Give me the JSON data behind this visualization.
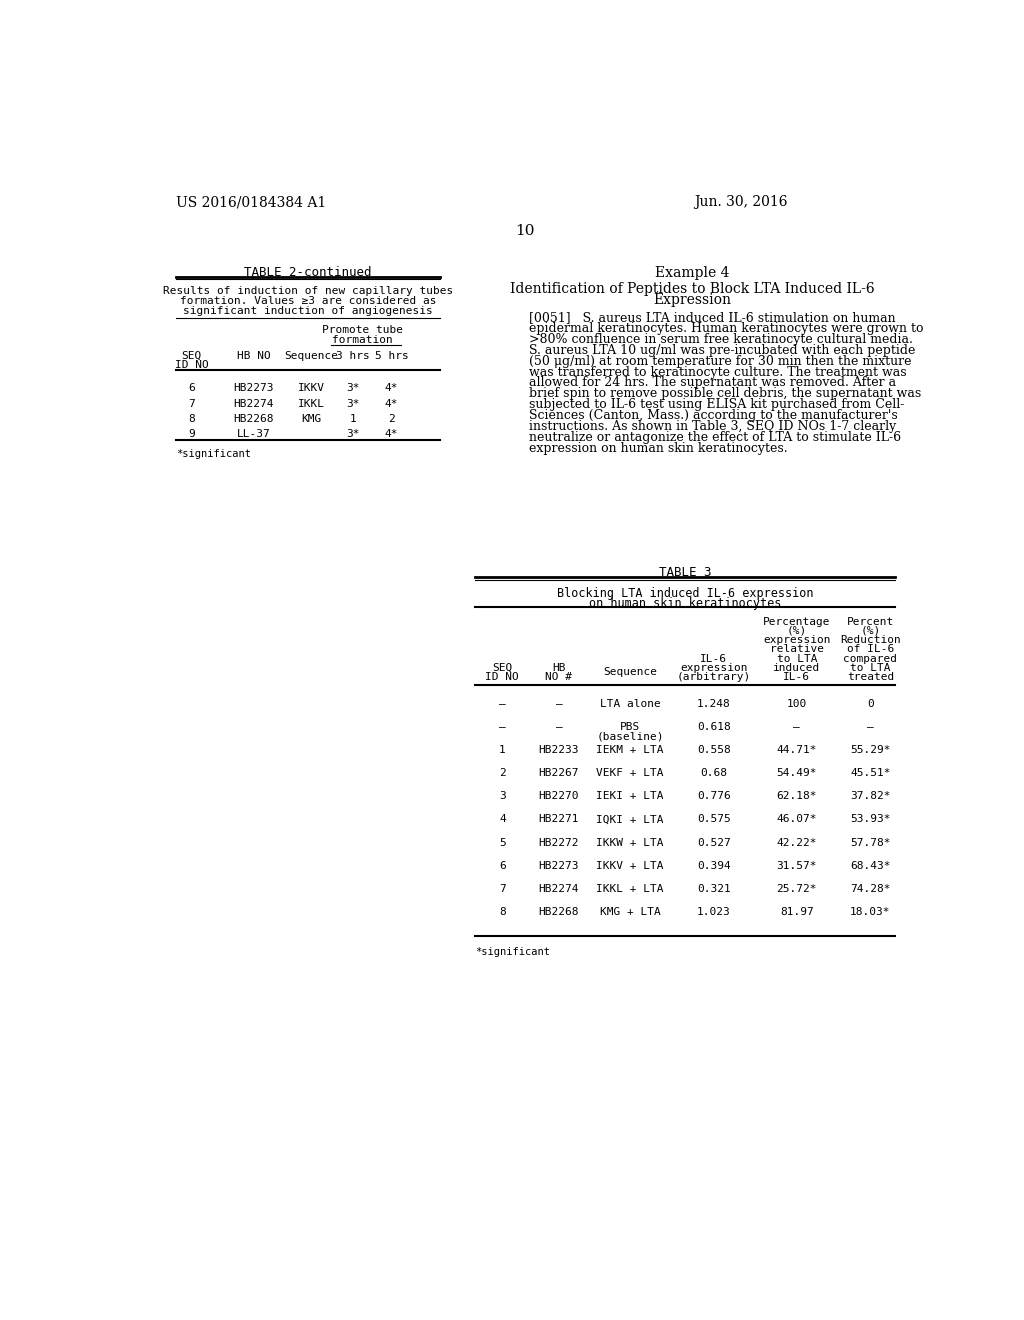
{
  "bg_color": "#ffffff",
  "page_number": "10",
  "header_left": "US 2016/0184384 A1",
  "header_right": "Jun. 30, 2016",
  "table2_title": "TABLE 2-continued",
  "table2_subtitle_lines": [
    "Results of induction of new capillary tubes",
    "formation. Values ≥3 are considered as",
    "significant induction of angiogenesis"
  ],
  "table2_rows": [
    [
      "6",
      "HB2273",
      "IKKV",
      "3*",
      "4*"
    ],
    [
      "7",
      "HB2274",
      "IKKL",
      "3*",
      "4*"
    ],
    [
      "8",
      "HB2268",
      "KMG",
      "1",
      "2"
    ],
    [
      "9",
      "LL-37",
      "",
      "3*",
      "4*"
    ]
  ],
  "table2_footnote": "*significant",
  "example4_title": "Example 4",
  "example4_subtitle_lines": [
    "Identification of Peptides to Block LTA Induced IL-6",
    "Expression"
  ],
  "example4_para_lines": [
    "[0051]   S. aureus LTA induced IL-6 stimulation on human",
    "epidermal keratinocytes. Human keratinocytes were grown to",
    ">80% confluence in serum free keratinocyte cultural media.",
    "S. aureus LTA 10 ug/ml was pre-incubated with each peptide",
    "(50 μg/ml) at room temperature for 30 min then the mixture",
    "was transferred to keratinocyte culture. The treatment was",
    "allowed for 24 hrs. The supernatant was removed. After a",
    "brief spin to remove possible cell debris, the supernatant was",
    "subjected to IL-6 test using ELISA kit purchased from Cell-",
    "Sciences (Canton, Mass.) according to the manufacturer's",
    "instructions. As shown in Table 3, SEQ ID NOs 1-7 clearly",
    "neutralize or antagonize the effect of LTA to stimulate IL-6",
    "expression on human skin keratinocytes."
  ],
  "table3_title": "TABLE 3",
  "table3_subtitle_lines": [
    "Blocking LTA induced IL-6 expression",
    "on human skin keratinocytes"
  ],
  "table3_rows": [
    [
      "–",
      "–",
      "LTA alone",
      "1.248",
      "100",
      "0"
    ],
    [
      "–",
      "–",
      "PBS",
      "0.618",
      "–",
      "–"
    ],
    [
      "1",
      "HB2233",
      "IEKM + LTA",
      "0.558",
      "44.71*",
      "55.29*"
    ],
    [
      "2",
      "HB2267",
      "VEKF + LTA",
      "0.68",
      "54.49*",
      "45.51*"
    ],
    [
      "3",
      "HB2270",
      "IEKI + LTA",
      "0.776",
      "62.18*",
      "37.82*"
    ],
    [
      "4",
      "HB2271",
      "IQKI + LTA",
      "0.575",
      "46.07*",
      "53.93*"
    ],
    [
      "5",
      "HB2272",
      "IKKW + LTA",
      "0.527",
      "42.22*",
      "57.78*"
    ],
    [
      "6",
      "HB2273",
      "IKKV + LTA",
      "0.394",
      "31.57*",
      "68.43*"
    ],
    [
      "7",
      "HB2274",
      "IKKL + LTA",
      "0.321",
      "25.72*",
      "74.28*"
    ],
    [
      "8",
      "HB2268",
      "KMG + LTA",
      "1.023",
      "81.97",
      "18.03*"
    ]
  ],
  "table3_footnote": "*significant"
}
